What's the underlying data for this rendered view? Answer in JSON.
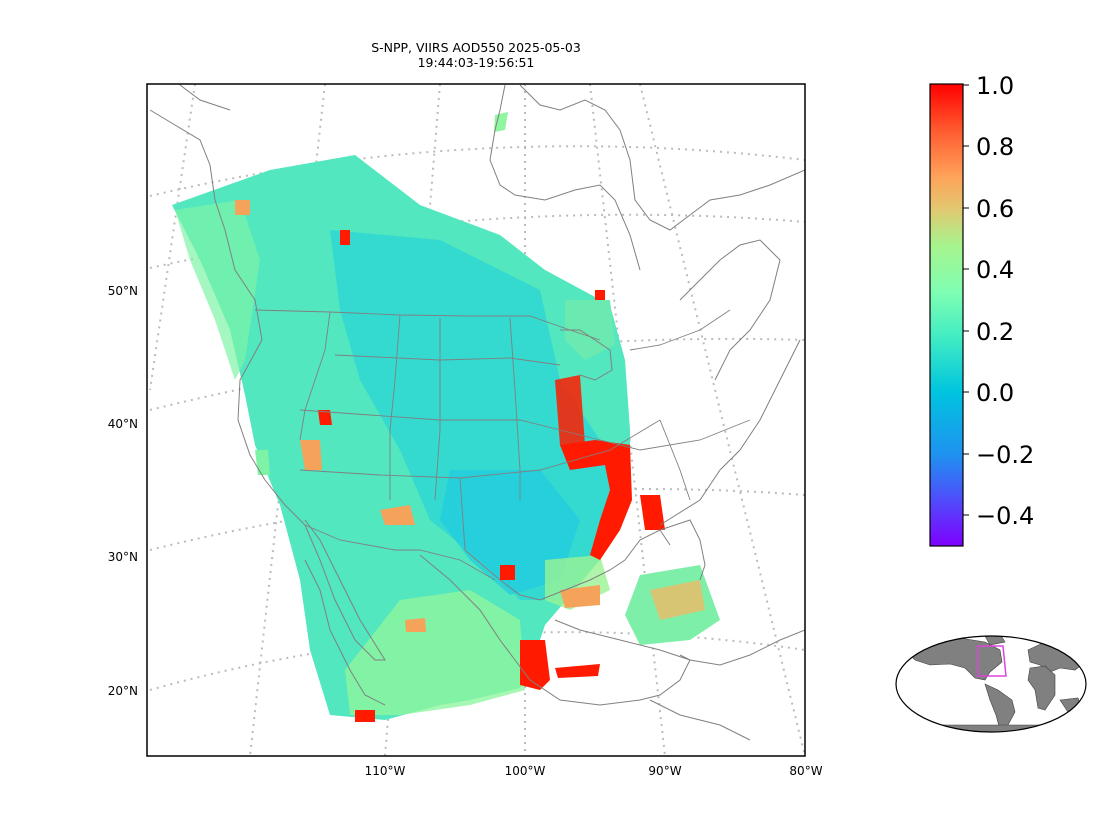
{
  "title": {
    "line1": "S-NPP, VIIRS AOD550 2025-05-03",
    "line2": "19:44:03-19:56:51"
  },
  "map": {
    "lat_labels": [
      "50°N",
      "40°N",
      "30°N",
      "20°N"
    ],
    "lon_labels": [
      "110°W",
      "100°W",
      "90°W",
      "80°W"
    ],
    "graticule_color": "#bbbbbb",
    "coastline_color": "#808080",
    "lon_range": [
      -130,
      -80
    ],
    "lat_range": [
      15,
      60
    ]
  },
  "colorbar": {
    "colormap": "rainbow",
    "min": -0.5,
    "max": 1.0,
    "tick_labels": [
      "1.0",
      "0.8",
      "0.6",
      "0.4",
      "0.2",
      "0.0",
      "−0.2",
      "−0.4"
    ]
  },
  "inset": {
    "type": "world-locator",
    "land_color": "#808080",
    "box_color": "#dd44dd"
  }
}
